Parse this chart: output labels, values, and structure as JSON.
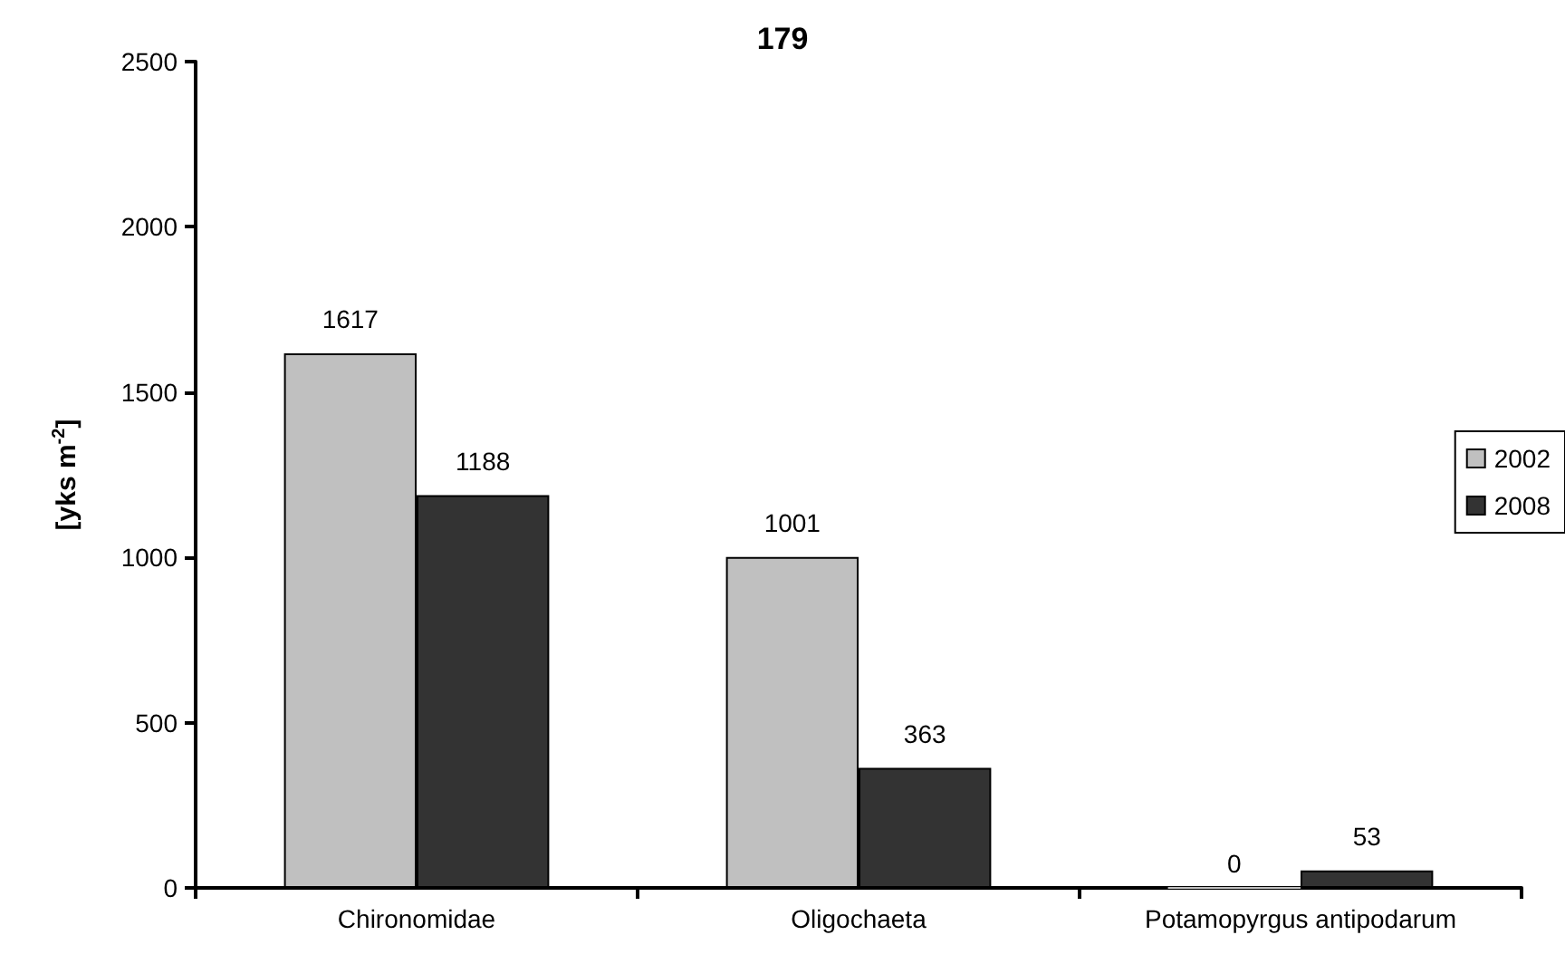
{
  "chart_data": {
    "type": "bar",
    "title": "179",
    "ylabel": "[yks m$^{-2}$]",
    "categories": [
      "Chironomidae",
      "Oligochaeta",
      "Potamopyrgus antipodarum"
    ],
    "series": [
      {
        "name": "2002",
        "color": "#c0c0c0",
        "values": [
          1617,
          1001,
          0
        ]
      },
      {
        "name": "2008",
        "color": "#333333",
        "values": [
          1188,
          363,
          53
        ]
      }
    ],
    "ylim": [
      0,
      2500
    ],
    "yticks": [
      0,
      500,
      1000,
      1500,
      2000,
      2500
    ],
    "grid": false,
    "legend": "right",
    "data_labels": true
  }
}
